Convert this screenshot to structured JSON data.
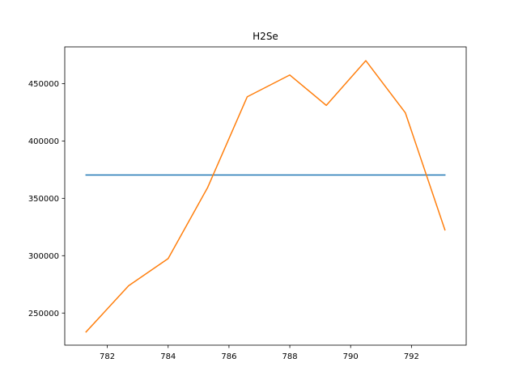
{
  "chart_data": {
    "type": "line",
    "title": "H2Se",
    "xlabel": "",
    "ylabel": "",
    "xlim": [
      780.6,
      793.8
    ],
    "ylim": [
      222000,
      482000
    ],
    "grid": false,
    "legend": "none",
    "xticks": [
      782,
      784,
      786,
      788,
      790,
      792
    ],
    "yticks": [
      250000,
      300000,
      350000,
      400000,
      450000
    ],
    "series": [
      {
        "color": "#1f77b4",
        "x": [
          781.3,
          793.1
        ],
        "y": [
          370300,
          370300
        ]
      },
      {
        "color": "#ff7f0e",
        "x": [
          781.3,
          782.7,
          784.0,
          785.3,
          786.6,
          788.0,
          789.2,
          790.5,
          791.8,
          793.1
        ],
        "y": [
          233500,
          273800,
          297500,
          359500,
          438500,
          457500,
          431000,
          470000,
          424500,
          322500
        ]
      }
    ]
  }
}
